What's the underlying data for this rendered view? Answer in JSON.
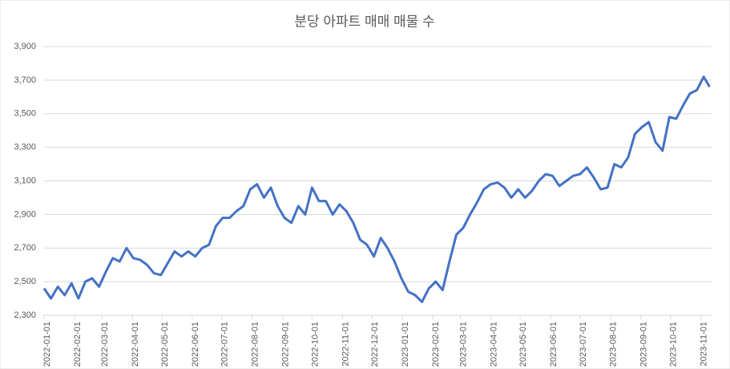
{
  "chart_data": {
    "type": "line",
    "title": "분당 아파트 매매 매물 수",
    "x": [
      "2022-01-01",
      "2022-01-08",
      "2022-01-15",
      "2022-01-22",
      "2022-01-29",
      "2022-02-05",
      "2022-02-12",
      "2022-02-19",
      "2022-02-26",
      "2022-03-05",
      "2022-03-12",
      "2022-03-19",
      "2022-03-26",
      "2022-04-02",
      "2022-04-09",
      "2022-04-16",
      "2022-04-23",
      "2022-04-30",
      "2022-05-07",
      "2022-05-14",
      "2022-05-21",
      "2022-05-28",
      "2022-06-04",
      "2022-06-11",
      "2022-06-18",
      "2022-06-25",
      "2022-07-02",
      "2022-07-09",
      "2022-07-16",
      "2022-07-23",
      "2022-07-30",
      "2022-08-06",
      "2022-08-13",
      "2022-08-20",
      "2022-08-27",
      "2022-09-03",
      "2022-09-10",
      "2022-09-17",
      "2022-09-24",
      "2022-10-01",
      "2022-10-08",
      "2022-10-15",
      "2022-10-22",
      "2022-10-29",
      "2022-11-05",
      "2022-11-12",
      "2022-11-19",
      "2022-11-26",
      "2022-12-03",
      "2022-12-10",
      "2022-12-17",
      "2022-12-24",
      "2022-12-31",
      "2023-01-07",
      "2023-01-14",
      "2023-01-21",
      "2023-01-28",
      "2023-02-04",
      "2023-02-11",
      "2023-02-18",
      "2023-02-25",
      "2023-03-04",
      "2023-03-11",
      "2023-03-18",
      "2023-03-25",
      "2023-04-01",
      "2023-04-08",
      "2023-04-15",
      "2023-04-22",
      "2023-04-29",
      "2023-05-06",
      "2023-05-13",
      "2023-05-20",
      "2023-05-27",
      "2023-06-03",
      "2023-06-10",
      "2023-06-17",
      "2023-06-24",
      "2023-07-01",
      "2023-07-08",
      "2023-07-15",
      "2023-07-22",
      "2023-07-29",
      "2023-08-05",
      "2023-08-12",
      "2023-08-19",
      "2023-08-26",
      "2023-09-02",
      "2023-09-09",
      "2023-09-16",
      "2023-09-23",
      "2023-09-30",
      "2023-10-07",
      "2023-10-14",
      "2023-10-21",
      "2023-10-28",
      "2023-11-04",
      "2023-11-10"
    ],
    "series": [
      {
        "name": "매물 수",
        "color": "#4472c4",
        "values": [
          2460,
          2400,
          2470,
          2420,
          2490,
          2400,
          2500,
          2520,
          2470,
          2560,
          2640,
          2620,
          2700,
          2640,
          2630,
          2600,
          2550,
          2540,
          2610,
          2680,
          2650,
          2680,
          2650,
          2700,
          2720,
          2830,
          2880,
          2880,
          2920,
          2950,
          3050,
          3080,
          3000,
          3060,
          2950,
          2880,
          2850,
          2950,
          2900,
          3060,
          2980,
          2980,
          2900,
          2960,
          2920,
          2850,
          2750,
          2720,
          2650,
          2760,
          2700,
          2620,
          2520,
          2440,
          2420,
          2380,
          2460,
          2500,
          2450,
          2620,
          2780,
          2820,
          2900,
          2970,
          3050,
          3080,
          3090,
          3060,
          3000,
          3050,
          3000,
          3040,
          3100,
          3140,
          3130,
          3070,
          3100,
          3130,
          3140,
          3180,
          3120,
          3050,
          3060,
          3200,
          3180,
          3240,
          3380,
          3420,
          3450,
          3330,
          3280,
          3480,
          3470,
          3550,
          3620,
          3640,
          3720,
          3660
        ]
      }
    ],
    "xlim": [
      "2022-01-01",
      "2023-11-12"
    ],
    "xticks": [
      "2022-01-01",
      "2022-02-01",
      "2022-03-01",
      "2022-04-01",
      "2022-05-01",
      "2022-06-01",
      "2022-07-01",
      "2022-08-01",
      "2022-09-01",
      "2022-10-01",
      "2022-11-01",
      "2022-12-01",
      "2023-01-01",
      "2023-02-01",
      "2023-03-01",
      "2023-04-01",
      "2023-05-01",
      "2023-06-01",
      "2023-07-01",
      "2023-08-01",
      "2023-09-01",
      "2023-10-01",
      "2023-11-01"
    ],
    "ylim": [
      2300,
      3900
    ],
    "yticks": [
      {
        "value": 2300,
        "label": "2,300"
      },
      {
        "value": 2500,
        "label": "2,500"
      },
      {
        "value": 2700,
        "label": "2,700"
      },
      {
        "value": 2900,
        "label": "2,900"
      },
      {
        "value": 3100,
        "label": "3,100"
      },
      {
        "value": 3300,
        "label": "3,300"
      },
      {
        "value": 3500,
        "label": "3,500"
      },
      {
        "value": 3700,
        "label": "3,700"
      },
      {
        "value": 3900,
        "label": "3,900"
      }
    ],
    "grid": true
  }
}
